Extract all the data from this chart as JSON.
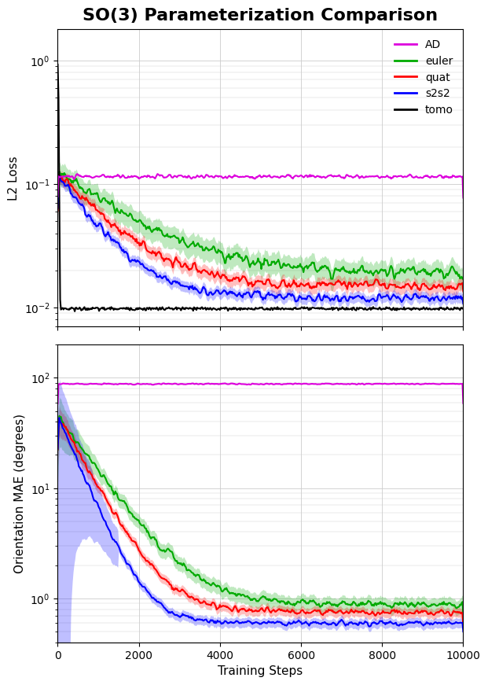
{
  "title": "SO(3) Parameterization Comparison",
  "title_fontsize": 16,
  "title_fontweight": "bold",
  "xlabel": "Training Steps",
  "ylabel_top": "L2 Loss",
  "ylabel_bottom": "Orientation MAE (degrees)",
  "x_max": 10000,
  "x_ticks": [
    0,
    2000,
    4000,
    6000,
    8000,
    10000
  ],
  "colors": {
    "AD": "#dd00dd",
    "euler": "#00aa00",
    "quat": "#ff0000",
    "s2s2": "#0000ff",
    "tomo": "#000000"
  },
  "alpha_fill": 0.25,
  "linewidth": 1.5,
  "background_color": "#ffffff",
  "grid_color": "#cccccc",
  "legend_labels": [
    "AD",
    "euler",
    "quat",
    "s2s2",
    "tomo"
  ]
}
